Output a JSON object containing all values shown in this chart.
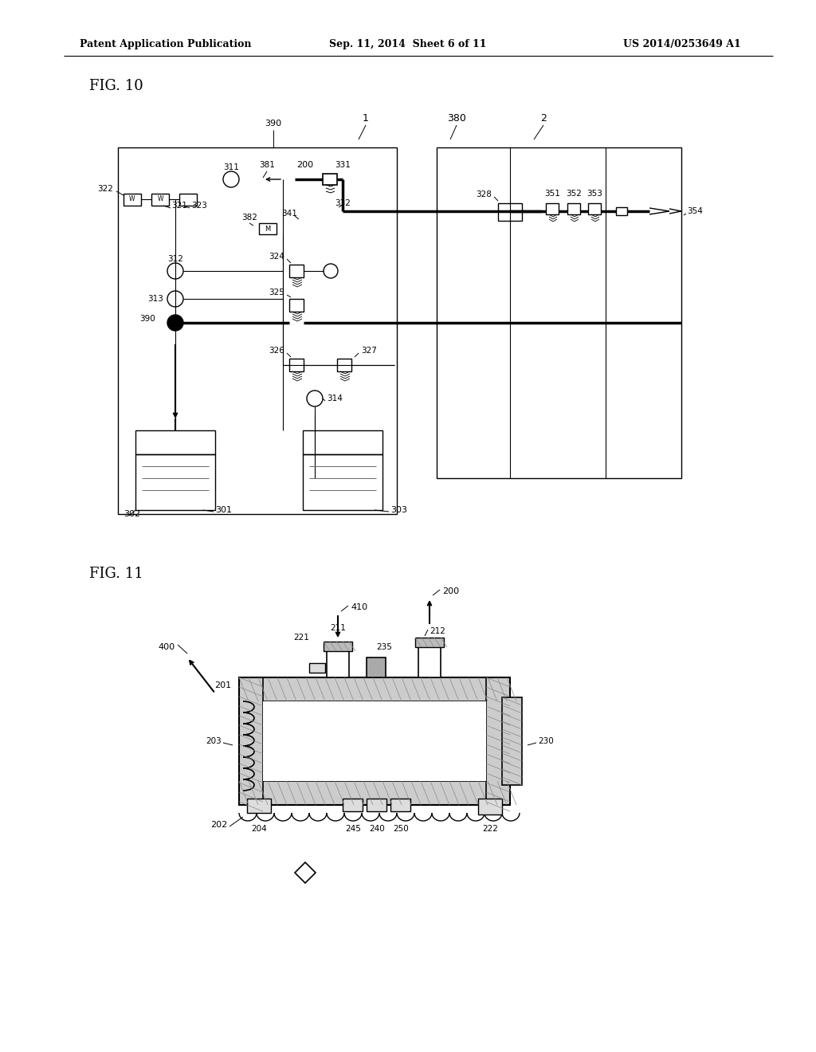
{
  "background_color": "#ffffff",
  "header_left": "Patent Application Publication",
  "header_center": "Sep. 11, 2014  Sheet 6 of 11",
  "header_right": "US 2014/0253649 A1",
  "fig10_label": "FIG. 10",
  "fig11_label": "FIG. 11",
  "header_fontsize": 9,
  "figlabel_fontsize": 13,
  "label_fontsize": 8
}
